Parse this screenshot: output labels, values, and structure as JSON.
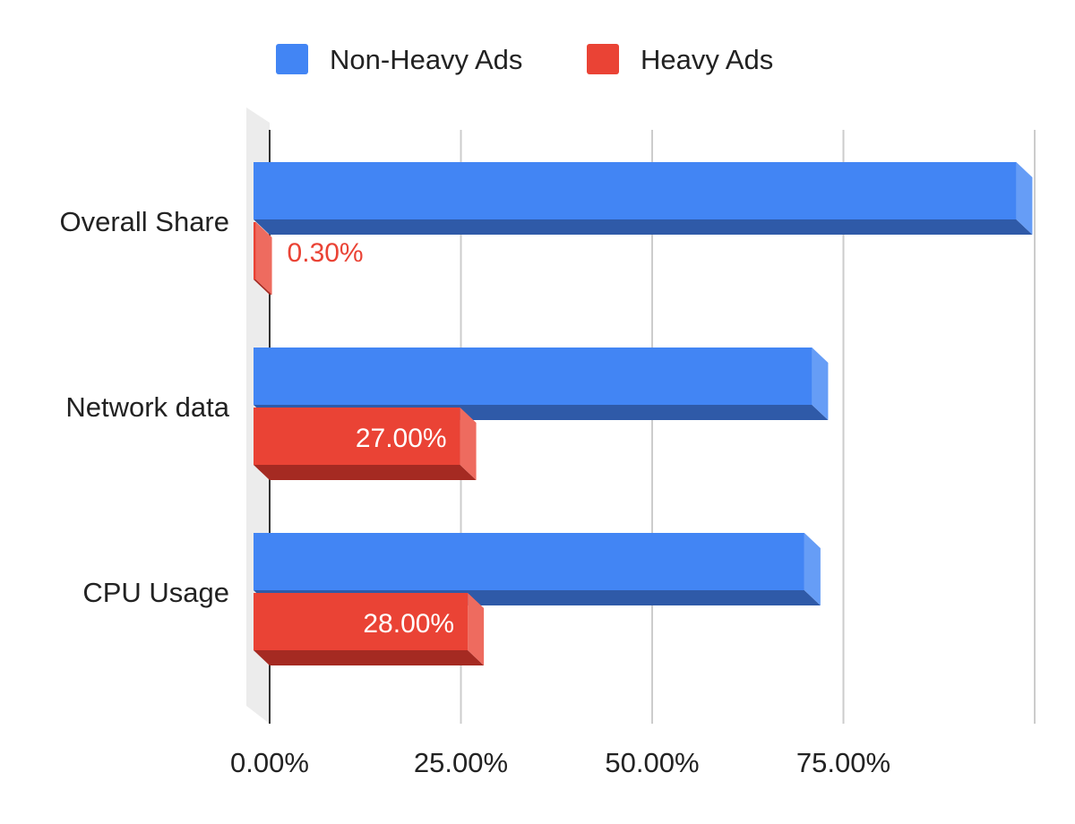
{
  "chart_data": {
    "type": "bar",
    "orientation": "horizontal",
    "style": "3d",
    "categories": [
      "Overall Share",
      "Network data",
      "CPU Usage"
    ],
    "series": [
      {
        "name": "Non-Heavy Ads",
        "color": "#4285f4",
        "values": [
          99.7,
          73,
          72
        ]
      },
      {
        "name": "Heavy Ads",
        "color": "#ea4335",
        "values": [
          0.3,
          27,
          28
        ],
        "data_labels": [
          "0.30%",
          "27.00%",
          "28.00%"
        ]
      }
    ],
    "x_ticks": [
      "0.00%",
      "25.00%",
      "50.00%",
      "75.00%"
    ],
    "xlim": [
      0,
      100
    ],
    "grid": true,
    "legend": "top"
  }
}
